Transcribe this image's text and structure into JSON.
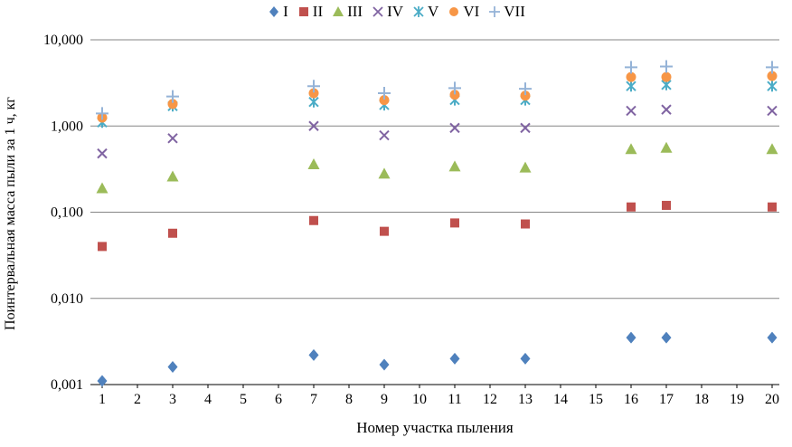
{
  "chart_data": {
    "type": "scatter",
    "title": "",
    "xlabel": "Номер участка пыления",
    "ylabel": "Поинтервальная масса пыли за 1 ч, кг",
    "legend_position": "top",
    "grid": "horizontal",
    "x_axis_ticks": [
      1,
      2,
      3,
      4,
      5,
      6,
      7,
      8,
      9,
      10,
      11,
      12,
      13,
      14,
      15,
      16,
      17,
      18,
      19,
      20
    ],
    "x": [
      1,
      3,
      7,
      9,
      11,
      13,
      16,
      17,
      20
    ],
    "y_axis": {
      "scale": "log",
      "min": 0.001,
      "max": 10,
      "tick_values": [
        0.001,
        0.01,
        0.1,
        1,
        10
      ],
      "tick_labels": [
        "0,001",
        "0,010",
        "0,100",
        "1,000",
        "10,000"
      ]
    },
    "series": [
      {
        "name": "I",
        "marker": "diamond",
        "color": "#4F81BD",
        "values": [
          0.0011,
          0.0016,
          0.0022,
          0.0017,
          0.002,
          0.002,
          0.0035,
          0.0035,
          0.0035
        ]
      },
      {
        "name": "II",
        "marker": "square",
        "color": "#C0504D",
        "values": [
          0.04,
          0.057,
          0.08,
          0.06,
          0.075,
          0.073,
          0.115,
          0.12,
          0.115
        ]
      },
      {
        "name": "III",
        "marker": "triangle",
        "color": "#9BBB59",
        "values": [
          0.19,
          0.26,
          0.36,
          0.28,
          0.34,
          0.33,
          0.54,
          0.56,
          0.54
        ]
      },
      {
        "name": "IV",
        "marker": "x",
        "color": "#8064A2",
        "values": [
          0.48,
          0.72,
          1.0,
          0.78,
          0.95,
          0.95,
          1.5,
          1.55,
          1.5
        ]
      },
      {
        "name": "V",
        "marker": "asterisk",
        "color": "#4BACC6",
        "values": [
          1.1,
          1.7,
          1.9,
          1.75,
          2.0,
          2.0,
          2.9,
          3.0,
          2.9
        ]
      },
      {
        "name": "VI",
        "marker": "circle",
        "color": "#F79646",
        "values": [
          1.25,
          1.8,
          2.4,
          2.0,
          2.3,
          2.25,
          3.7,
          3.7,
          3.8
        ]
      },
      {
        "name": "VII",
        "marker": "plus",
        "color": "#95B3D7",
        "values": [
          1.4,
          2.2,
          2.9,
          2.4,
          2.75,
          2.7,
          4.8,
          4.9,
          4.8
        ]
      }
    ]
  }
}
